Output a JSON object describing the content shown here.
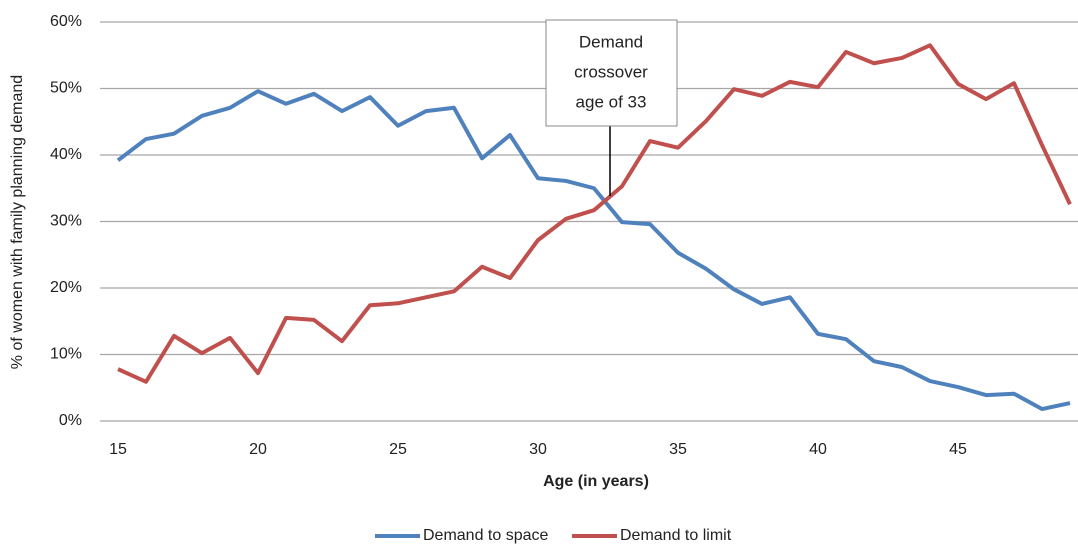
{
  "chart_data": {
    "type": "line",
    "x_label": "Age (in years)",
    "y_label": "% of women with family planning demand",
    "x": [
      15,
      16,
      17,
      18,
      19,
      20,
      21,
      22,
      23,
      24,
      25,
      26,
      27,
      28,
      29,
      30,
      31,
      32,
      33,
      34,
      35,
      36,
      37,
      38,
      39,
      40,
      41,
      42,
      43,
      44,
      45,
      46,
      47,
      48,
      49
    ],
    "series": [
      {
        "name": "Demand to space",
        "color": "#4f81bd",
        "values": [
          39.2,
          42.4,
          43.2,
          45.9,
          47.1,
          49.6,
          47.7,
          49.2,
          46.6,
          48.7,
          44.4,
          46.6,
          47.1,
          39.5,
          43.0,
          36.5,
          36.1,
          35.0,
          29.9,
          29.6,
          25.3,
          22.9,
          19.8,
          17.6,
          18.6,
          13.1,
          12.3,
          9.0,
          8.1,
          6.0,
          5.1,
          3.9,
          4.1,
          1.8,
          2.7
        ]
      },
      {
        "name": "Demand to limit",
        "color": "#c0504d",
        "values": [
          7.8,
          5.9,
          12.8,
          10.2,
          12.5,
          7.2,
          15.5,
          15.2,
          12.0,
          17.4,
          17.7,
          18.6,
          19.5,
          23.2,
          21.5,
          27.2,
          30.4,
          31.7,
          35.3,
          42.1,
          41.1,
          45.1,
          49.9,
          48.9,
          51.0,
          50.2,
          55.5,
          53.8,
          54.6,
          56.5,
          50.7,
          48.4,
          50.8,
          41.5,
          32.6
        ]
      }
    ],
    "xlim": [
      15,
      49
    ],
    "xticks": [
      15,
      20,
      25,
      30,
      35,
      40,
      45
    ],
    "ylim": [
      0,
      60
    ],
    "yticks": [
      {
        "value": 0,
        "label": "0%"
      },
      {
        "value": 10,
        "label": "10%"
      },
      {
        "value": 20,
        "label": "20%"
      },
      {
        "value": 30,
        "label": "30%"
      },
      {
        "value": 40,
        "label": "40%"
      },
      {
        "value": 50,
        "label": "50%"
      },
      {
        "value": 60,
        "label": "60%"
      }
    ],
    "grid": true,
    "legend": "bottom",
    "annotation": [
      "Demand",
      "crossover",
      "age of 33"
    ]
  }
}
